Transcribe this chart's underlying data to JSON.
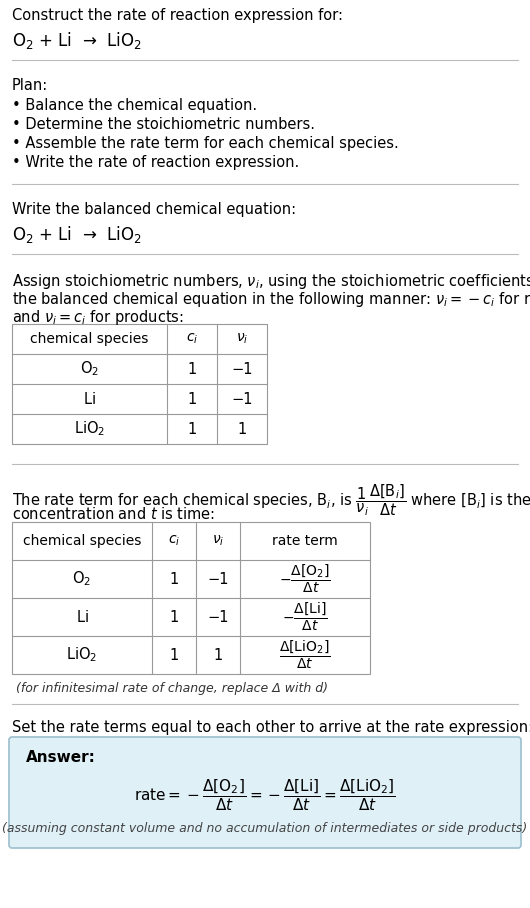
{
  "bg_color": "#ffffff",
  "text_color": "#000000",
  "answer_bg": "#dff0f7",
  "title_text": "Construct the rate of reaction expression for:",
  "section1_header": "Plan:",
  "plan_items": [
    "• Balance the chemical equation.",
    "• Determine the stoichiometric numbers.",
    "• Assemble the rate term for each chemical species.",
    "• Write the rate of reaction expression."
  ],
  "section2_header": "Write the balanced chemical equation:",
  "section3_intro_line1": "Assign stoichiometric numbers, ν_i, using the stoichiometric coefficients, c_i, from",
  "section3_intro_line2": "the balanced chemical equation in the following manner: ν_i = −c_i for reactants",
  "section3_intro_line3": "and ν_i = c_i for products:",
  "table1_headers": [
    "chemical species",
    "c_i",
    "ν_i"
  ],
  "table1_rows": [
    [
      "O_2",
      "1",
      "−1"
    ],
    [
      "Li",
      "1",
      "−1"
    ],
    [
      "LiO_2",
      "1",
      "1"
    ]
  ],
  "section4_line2": "concentration and t is time:",
  "table2_headers": [
    "chemical species",
    "c_i",
    "ν_i",
    "rate term"
  ],
  "table2_rows": [
    [
      "O_2",
      "1",
      "−1"
    ],
    [
      "Li",
      "1",
      "−1"
    ],
    [
      "LiO_2",
      "1",
      "1"
    ]
  ],
  "infinitesimal_note": "(for infinitesimal rate of change, replace Δ with d)",
  "section5_header": "Set the rate terms equal to each other to arrive at the rate expression:",
  "answer_label": "Answer:",
  "answer_note": "(assuming constant volume and no accumulation of intermediates or side products)",
  "divider_color": "#bbbbbb",
  "table_border_color": "#999999",
  "answer_border_color": "#9bbfcc"
}
